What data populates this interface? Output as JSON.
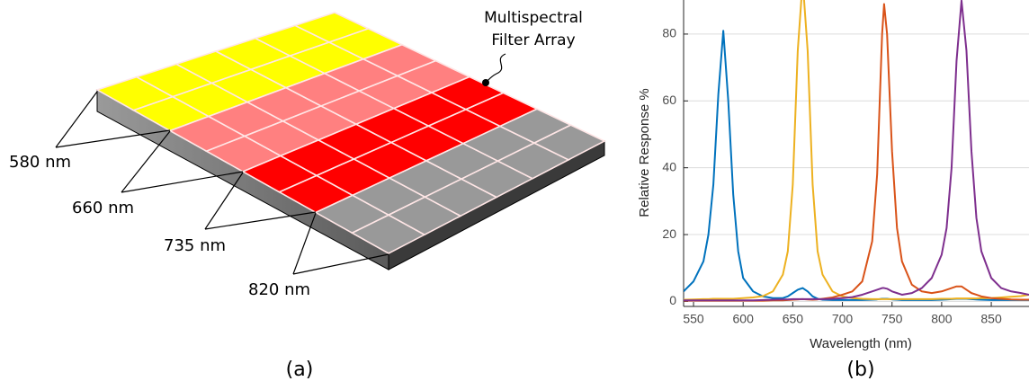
{
  "diagram": {
    "labels": [
      "580 nm",
      "660 nm",
      "735 nm",
      "820 nm"
    ],
    "annotation": [
      "Multispectral",
      "Filter Array"
    ],
    "caption": "(a)"
  },
  "chart_data": {
    "type": "line",
    "caption": "(b)",
    "xlabel": "Wavelength (nm)",
    "ylabel": "Relative Response %",
    "xlim": [
      540,
      888
    ],
    "ylim": [
      -1.5,
      90.2
    ],
    "xticks": [
      550,
      600,
      650,
      700,
      750,
      800,
      850
    ],
    "yticks": [
      0,
      20,
      40,
      60,
      80
    ],
    "grid": true,
    "x": [
      540,
      550,
      560,
      565,
      570,
      575,
      580,
      585,
      590,
      595,
      600,
      610,
      620,
      630,
      640,
      645,
      650,
      655,
      660,
      665,
      670,
      675,
      680,
      690,
      700,
      710,
      720,
      730,
      735,
      740,
      742,
      745,
      750,
      755,
      760,
      770,
      780,
      790,
      800,
      805,
      810,
      815,
      820,
      825,
      830,
      835,
      840,
      850,
      860,
      870,
      880,
      888
    ],
    "series": [
      {
        "color": "#0072bd",
        "values": [
          3,
          6,
          12,
          20,
          35,
          62,
          81,
          60,
          32,
          15,
          7,
          3,
          1.5,
          1,
          1,
          1.5,
          2.5,
          3.5,
          4,
          3,
          1.5,
          0.8,
          0.5,
          0.4,
          0.4,
          0.4,
          0.4,
          0.5,
          0.6,
          0.8,
          0.8,
          0.8,
          0.6,
          0.5,
          0.4,
          0.4,
          0.4,
          0.4,
          0.5,
          0.6,
          0.7,
          0.8,
          0.8,
          0.8,
          0.7,
          0.6,
          0.5,
          0.4,
          0.4,
          0.4,
          0.4,
          0.4
        ]
      },
      {
        "color": "#edb120",
        "values": [
          0.5,
          0.6,
          0.7,
          0.7,
          0.8,
          0.8,
          0.8,
          0.8,
          0.8,
          0.9,
          1,
          1.2,
          1.6,
          3,
          8,
          15,
          35,
          75,
          96,
          75,
          35,
          15,
          8,
          3,
          1.5,
          1,
          0.8,
          0.7,
          0.7,
          0.7,
          0.7,
          0.7,
          0.7,
          0.7,
          0.7,
          0.7,
          0.7,
          0.7,
          0.8,
          0.8,
          0.8,
          0.9,
          0.9,
          0.9,
          0.9,
          0.9,
          1,
          1,
          1.2,
          1.4,
          1.6,
          2
        ]
      },
      {
        "color": "#d95319",
        "values": [
          0.2,
          0.2,
          0.2,
          0.2,
          0.2,
          0.2,
          0.2,
          0.2,
          0.2,
          0.2,
          0.2,
          0.2,
          0.2,
          0.3,
          0.3,
          0.4,
          0.5,
          0.6,
          0.7,
          0.6,
          0.5,
          0.6,
          0.8,
          1.2,
          2,
          3,
          6,
          18,
          38,
          80,
          89,
          80,
          45,
          22,
          12,
          5,
          3,
          2.5,
          3,
          3.5,
          4,
          4.5,
          4.5,
          3.5,
          2.5,
          2,
          1.5,
          1,
          0.8,
          0.6,
          0.5,
          0.5
        ]
      },
      {
        "color": "#7e2f8e",
        "values": [
          0.3,
          0.3,
          0.3,
          0.3,
          0.3,
          0.3,
          0.3,
          0.3,
          0.3,
          0.3,
          0.3,
          0.3,
          0.4,
          0.5,
          0.6,
          0.6,
          0.7,
          0.7,
          0.7,
          0.7,
          0.7,
          0.7,
          0.7,
          0.8,
          1,
          1.3,
          2,
          3,
          3.5,
          4,
          4,
          3.8,
          3,
          2.5,
          2,
          2.5,
          4,
          7,
          14,
          22,
          40,
          72,
          90,
          75,
          45,
          25,
          15,
          7,
          4,
          3,
          2.5,
          2
        ]
      }
    ]
  }
}
